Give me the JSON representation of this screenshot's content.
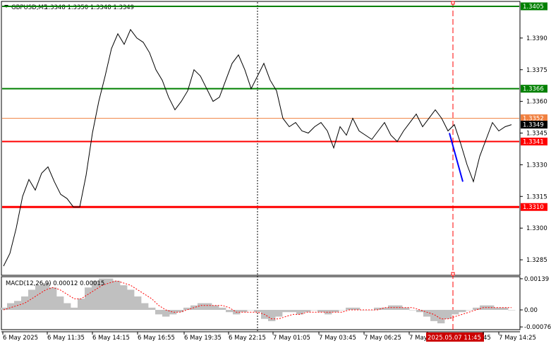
{
  "header": {
    "symbol_label": "GBPUSD,M5",
    "ohlc": "1.3348 1.3350 1.3348 1.3349"
  },
  "colors": {
    "support": "#ff0000",
    "resistance": "#008000",
    "current": "#f08040",
    "price_line": "#000000",
    "macd_hist": "#c0c0c0",
    "macd_signal": "#ff0000",
    "down_move": "#0000ff",
    "highlight_bg": "#cc0000"
  },
  "chart_data": {
    "type": "line",
    "title": "GBPUSD,M5",
    "price_axis": {
      "min": 1.3278,
      "max": 1.3407,
      "ticks": [
        "1.3390",
        "1.3375",
        "1.3360",
        "1.3345",
        "1.3330",
        "1.3315",
        "1.3300",
        "1.3285"
      ]
    },
    "levels": [
      {
        "label": "1.3405",
        "value": 1.3405,
        "kind": "resistance"
      },
      {
        "label": "1.3366",
        "value": 1.3366,
        "kind": "resistance"
      },
      {
        "label": "1.3352",
        "value": 1.3352,
        "kind": "current"
      },
      {
        "label": "1.3349",
        "value": 1.3349,
        "kind": "last"
      },
      {
        "label": "1.3341",
        "value": 1.3341,
        "kind": "support"
      },
      {
        "label": "1.3310",
        "value": 1.331,
        "kind": "support"
      }
    ],
    "price_series": [
      1.3282,
      1.3288,
      1.33,
      1.3315,
      1.3323,
      1.3318,
      1.3326,
      1.3329,
      1.3322,
      1.3316,
      1.3314,
      1.331,
      1.331,
      1.3325,
      1.3345,
      1.336,
      1.3372,
      1.3385,
      1.3392,
      1.3387,
      1.3394,
      1.339,
      1.3388,
      1.3383,
      1.3375,
      1.337,
      1.3362,
      1.3356,
      1.336,
      1.3365,
      1.3375,
      1.3372,
      1.3366,
      1.336,
      1.3362,
      1.337,
      1.3378,
      1.3382,
      1.3375,
      1.3366,
      1.3372,
      1.3378,
      1.337,
      1.3365,
      1.3352,
      1.3348,
      1.335,
      1.3346,
      1.3345,
      1.3348,
      1.335,
      1.3346,
      1.3338,
      1.3348,
      1.3344,
      1.3352,
      1.3346,
      1.3344,
      1.3342,
      1.3346,
      1.335,
      1.3344,
      1.3341,
      1.3346,
      1.335,
      1.3354,
      1.3348,
      1.3352,
      1.3356,
      1.3352,
      1.3346,
      1.3349,
      1.334,
      1.333,
      1.3322,
      1.3334,
      1.3342,
      1.335,
      1.3346,
      1.3348,
      1.3349
    ],
    "down_move": {
      "from": 1.3345,
      "to": 1.3322
    },
    "macd": {
      "label": "MACD(12,26,9) 0.00012 0.00015",
      "ticks": [
        "0.00139",
        "0.00",
        "-0.00076"
      ],
      "min": -0.00085,
      "max": 0.00145,
      "hist": [
        0.0001,
        0.0003,
        0.0004,
        0.0006,
        0.0009,
        0.0011,
        0.0012,
        0.001,
        0.0006,
        0.0003,
        0.0001,
        0.0005,
        0.001,
        0.0013,
        0.0014,
        0.0014,
        0.0013,
        0.0011,
        0.0009,
        0.0006,
        0.0003,
        0.0001,
        -0.0002,
        -0.0003,
        -0.0002,
        -0.0001,
        0.0001,
        0.0002,
        0.0003,
        0.0003,
        0.0002,
        0.0001,
        -0.0001,
        -0.0002,
        -0.0001,
        0.0,
        -0.0001,
        -0.0004,
        -0.0005,
        -0.0003,
        -0.0001,
        -0.0001,
        -0.0002,
        -0.0001,
        0.0,
        -0.0001,
        -0.0002,
        -0.0001,
        0.0,
        0.0001,
        0.0001,
        0.0,
        0.0,
        0.0001,
        0.0001,
        0.0002,
        0.0002,
        0.0001,
        0.0,
        -0.0001,
        -0.0003,
        -0.0005,
        -0.0006,
        -0.0004,
        -0.0002,
        -0.0001,
        0.0,
        0.0001,
        0.0002,
        0.0002,
        0.0001,
        0.0001,
        0.0
      ],
      "signal": [
        0.0,
        0.0001,
        0.0002,
        0.0003,
        0.0005,
        0.0007,
        0.0009,
        0.001,
        0.0009,
        0.0007,
        0.0005,
        0.0005,
        0.0007,
        0.0009,
        0.0011,
        0.0012,
        0.0013,
        0.0012,
        0.0011,
        0.0009,
        0.0007,
        0.0005,
        0.0002,
        0.0,
        -0.0001,
        -0.0001,
        0.0,
        0.0001,
        0.0002,
        0.0002,
        0.0002,
        0.0002,
        0.0001,
        -0.0001,
        -0.0001,
        -0.0001,
        -0.0001,
        -0.0002,
        -0.0004,
        -0.0004,
        -0.0003,
        -0.0002,
        -0.0002,
        -0.0001,
        -0.0001,
        -0.0001,
        -0.0001,
        -0.0001,
        -0.0001,
        0.0,
        0.0,
        0.0,
        0.0,
        0.0,
        0.0001,
        0.0001,
        0.0001,
        0.0001,
        0.0001,
        0.0,
        -0.0001,
        -0.0002,
        -0.0004,
        -0.0004,
        -0.0003,
        -0.0002,
        -0.0001,
        0.0,
        0.0001,
        0.0001,
        0.0001,
        0.0001,
        0.0001
      ]
    },
    "time_labels": [
      "6 May 2025",
      "6 May 11:35",
      "6 May 14:15",
      "6 May 16:55",
      "6 May 19:35",
      "6 May 22:15",
      "7 May 01:05",
      "7 May 03:45",
      "7 May 06:25",
      "7 May",
      "2025.05.07 11:45",
      "45",
      "7 May 14:25"
    ]
  }
}
